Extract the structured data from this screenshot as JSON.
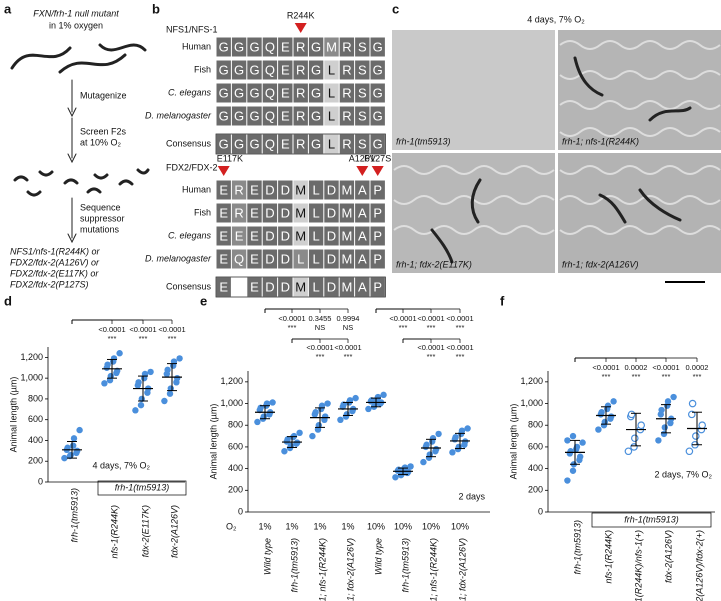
{
  "panels": {
    "a": {
      "letter": "a",
      "lines_top": [
        "FXN/frh-1 null mutant",
        "in 1% oxygen"
      ],
      "step1": "Mutagenize",
      "step2": [
        "Screen F2s",
        "at 10% O₂"
      ],
      "step3": [
        "Sequence",
        "suppressor",
        "mutations"
      ],
      "result": [
        "NFS1/nfs-1(R244K) or",
        "FDX2/fdx-2(A126V) or",
        "FDX2/fdx-2(E117K) or",
        "FDX2/fdx-2(P127S)"
      ]
    },
    "b": {
      "letter": "b",
      "row_labels": [
        "Human",
        "Fish",
        "C. elegans",
        "D. melanogaster",
        "Consensus"
      ],
      "alignments": [
        {
          "name": "NFS1/NFS-1",
          "mutations": [
            {
              "label": "R244K",
              "column": 5
            }
          ],
          "rows": [
            [
              "G",
              "G",
              "G",
              "Q",
              "E",
              "R",
              "G",
              "M",
              "R",
              "S",
              "G"
            ],
            [
              "G",
              "G",
              "G",
              "Q",
              "E",
              "R",
              "G",
              "L",
              "R",
              "S",
              "G"
            ],
            [
              "G",
              "G",
              "G",
              "Q",
              "E",
              "R",
              "G",
              "L",
              "R",
              "S",
              "G"
            ],
            [
              "G",
              "G",
              "G",
              "Q",
              "E",
              "R",
              "G",
              "L",
              "R",
              "S",
              "G"
            ],
            [
              "G",
              "G",
              "G",
              "Q",
              "E",
              "R",
              "G",
              "L",
              "R",
              "S",
              "G"
            ]
          ]
        },
        {
          "name": "FDX2/FDX-2",
          "mutations": [
            {
              "label": "E117K",
              "column": 0
            },
            {
              "label": "A126V",
              "column": 9
            },
            {
              "label": "P127S",
              "column": 10
            }
          ],
          "rows": [
            [
              "E",
              "R",
              "E",
              "D",
              "D",
              "M",
              "L",
              "D",
              "M",
              "A",
              "P"
            ],
            [
              "E",
              "R",
              "E",
              "D",
              "D",
              "M",
              "L",
              "D",
              "M",
              "A",
              "P"
            ],
            [
              "E",
              "E",
              "E",
              "D",
              "D",
              "M",
              "L",
              "D",
              "M",
              "A",
              "P"
            ],
            [
              "E",
              "Q",
              "E",
              "D",
              "D",
              "L",
              "L",
              "D",
              "M",
              "A",
              "P"
            ],
            [
              "E",
              null,
              "E",
              "D",
              "D",
              "M",
              "L",
              "D",
              "M",
              "A",
              "P"
            ]
          ]
        }
      ]
    },
    "c": {
      "letter": "c",
      "header": "4 days, 7% O₂",
      "images": [
        "frh-1(tm5913)",
        "frh-1; nfs-1(R244K)",
        "frh-1; fdx-2(E117K)",
        "frh-1; fdx-2(A126V)"
      ]
    },
    "d": {
      "letter": "d",
      "type": "scatter",
      "ylabel": "Animal length (µm)",
      "ylim": [
        0,
        1300
      ],
      "yticks": [
        0,
        200,
        400,
        600,
        800,
        {
          "value": 1000,
          "label": "1,000"
        },
        {
          "value": 1200,
          "label": "1,200"
        }
      ],
      "annotation": "4 days, 7% O₂",
      "box_label": "frh-1(tm5913)",
      "color": "#4a8fdc",
      "groups": [
        {
          "label": "frh-1(tm5913)",
          "points": [
            230,
            250,
            260,
            280,
            300,
            310,
            330,
            350,
            420,
            500
          ],
          "mean": 310,
          "sd": 80
        },
        {
          "label": "nfs-1(R244K)",
          "points": [
            950,
            980,
            1020,
            1050,
            1070,
            1100,
            1130,
            1160,
            1190,
            1240
          ],
          "mean": 1090,
          "sd": 90,
          "vs_control": {
            "p": "<0.0001",
            "sig": "***"
          }
        },
        {
          "label": "fdx-2(E117K)",
          "points": [
            690,
            740,
            800,
            860,
            900,
            930,
            960,
            1000,
            1040,
            1060
          ],
          "mean": 900,
          "sd": 120,
          "vs_control": {
            "p": "<0.0001",
            "sig": "***"
          }
        },
        {
          "label": "fdx-2(A126V)",
          "points": [
            780,
            850,
            900,
            960,
            1000,
            1040,
            1080,
            1120,
            1160,
            1190
          ],
          "mean": 1010,
          "sd": 130,
          "vs_control": {
            "p": "<0.0001",
            "sig": "***"
          }
        }
      ]
    },
    "e": {
      "letter": "e",
      "type": "scatter",
      "ylabel": "Animal length (µm)",
      "ylim": [
        0,
        1300
      ],
      "yticks": [
        0,
        200,
        400,
        600,
        800,
        {
          "value": 1000,
          "label": "1,000"
        },
        {
          "value": 1200,
          "label": "1,200"
        }
      ],
      "annotation": "2 days",
      "o2_label": "O₂",
      "color": "#4a8fdc",
      "groups": [
        {
          "label": "Wild type",
          "o2": "1%",
          "points": [
            830,
            860,
            880,
            900,
            920,
            940,
            960,
            980,
            1000,
            1010
          ],
          "mean": 920,
          "sd": 60
        },
        {
          "label": "frh-1(tm5913)",
          "o2": "1%",
          "points": [
            560,
            590,
            610,
            630,
            640,
            650,
            670,
            690,
            700,
            730
          ],
          "mean": 645,
          "sd": 50,
          "vs_control": {
            "p": "<0.0001",
            "sig": "***"
          }
        },
        {
          "label": "frh-1; nfs-1(R244K)",
          "o2": "1%",
          "points": [
            700,
            760,
            800,
            850,
            880,
            900,
            920,
            950,
            980,
            1000
          ],
          "mean": 870,
          "sd": 90,
          "vs_control": {
            "p": "0.3455",
            "sig": "NS"
          },
          "vs_mutant": {
            "p": "<0.0001",
            "sig": "***"
          }
        },
        {
          "label": "frh-1; fdx-2(A126V)",
          "o2": "1%",
          "points": [
            850,
            880,
            900,
            930,
            950,
            970,
            990,
            1010,
            1030,
            1050
          ],
          "mean": 950,
          "sd": 60,
          "vs_control": {
            "p": "0.9994",
            "sig": "NS"
          },
          "vs_mutant": {
            "p": "<0.0001",
            "sig": "***"
          }
        },
        {
          "label": "Wild type",
          "o2": "10%",
          "points": [
            950,
            970,
            990,
            1000,
            1010,
            1020,
            1030,
            1040,
            1060,
            1080
          ],
          "mean": 1010,
          "sd": 40
        },
        {
          "label": "frh-1(tm5913)",
          "o2": "10%",
          "points": [
            320,
            340,
            350,
            360,
            370,
            380,
            390,
            400,
            410,
            420
          ],
          "mean": 375,
          "sd": 30,
          "vs_control": {
            "p": "<0.0001",
            "sig": "***"
          }
        },
        {
          "label": "frh-1; nfs-1(R244K)",
          "o2": "10%",
          "points": [
            460,
            500,
            530,
            560,
            580,
            600,
            620,
            650,
            680,
            720
          ],
          "mean": 590,
          "sd": 80,
          "vs_control": {
            "p": "<0.0001",
            "sig": "***"
          },
          "vs_mutant": {
            "p": "<0.0001",
            "sig": "***"
          }
        },
        {
          "label": "frh-1; fdx-2(A126V)",
          "o2": "10%",
          "points": [
            550,
            580,
            600,
            620,
            650,
            670,
            690,
            720,
            750,
            770
          ],
          "mean": 655,
          "sd": 70,
          "vs_control": {
            "p": "<0.0001",
            "sig": "***"
          },
          "vs_mutant": {
            "p": "<0.0001",
            "sig": "***"
          }
        }
      ]
    },
    "f": {
      "letter": "f",
      "type": "scatter",
      "ylabel": "Animal length (µm)",
      "ylim": [
        0,
        1300
      ],
      "yticks": [
        0,
        200,
        400,
        600,
        800,
        {
          "value": 1000,
          "label": "1,000"
        },
        {
          "value": 1200,
          "label": "1,200"
        }
      ],
      "annotation": "2 days, 7% O₂",
      "box_label": "frh-1(tm5913)",
      "color": "#4a8fdc",
      "groups": [
        {
          "label": "frh-1(tm5913)",
          "marker": "filled",
          "points": [
            290,
            380,
            440,
            480,
            510,
            540,
            560,
            580,
            600,
            640,
            660,
            700
          ],
          "mean": 550,
          "sd": 110
        },
        {
          "label": "nfs-1(R244K)",
          "marker": "filled",
          "points": [
            760,
            800,
            830,
            860,
            880,
            900,
            920,
            950,
            980,
            1020
          ],
          "mean": 890,
          "sd": 80,
          "vs_control": {
            "p": "<0.0001",
            "sig": "***"
          }
        },
        {
          "label": "nfs-1(R244K)/nfs-1(+)",
          "marker": "open",
          "points": [
            560,
            600,
            680,
            760,
            800,
            880,
            900
          ],
          "mean": 760,
          "sd": 150,
          "vs_control": {
            "p": "0.0002",
            "sig": "***"
          }
        },
        {
          "label": "fdx-2(A126V)",
          "marker": "filled",
          "points": [
            660,
            720,
            780,
            820,
            860,
            900,
            940,
            980,
            1020,
            1060
          ],
          "mean": 860,
          "sd": 130,
          "vs_control": {
            "p": "<0.0001",
            "sig": "***"
          }
        },
        {
          "label": "fdx-2(A126V)/fdx-2(+)",
          "marker": "open",
          "points": [
            560,
            620,
            700,
            760,
            800,
            900,
            1000
          ],
          "mean": 770,
          "sd": 150,
          "vs_control": {
            "p": "0.0002",
            "sig": "***"
          }
        }
      ]
    }
  }
}
